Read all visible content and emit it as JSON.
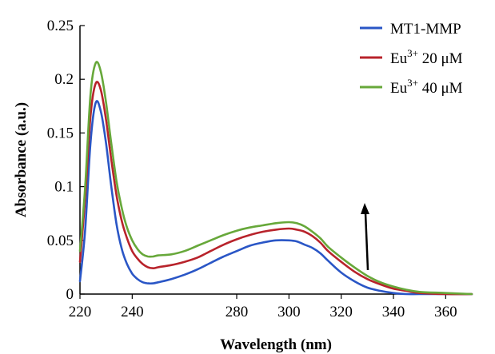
{
  "chart_data": {
    "type": "line",
    "xlabel": "Wavelength (nm)",
    "ylabel": "Absorbance (a.u.)",
    "xlim": [
      220,
      370
    ],
    "ylim": [
      0,
      0.25
    ],
    "x_ticks": [
      "220",
      "240",
      "280",
      "300",
      "320",
      "340",
      "360"
    ],
    "y_ticks": [
      "0",
      "0.05",
      "0.1",
      "0.15",
      "0.2",
      "0.25"
    ],
    "legend_position": "top-right",
    "annotation": "upward arrow near 335 nm indicating increasing absorbance",
    "series": [
      {
        "name": "MT1-MMP",
        "legend_main": "MT1-MMP",
        "legend_sup": "",
        "legend_tail": "",
        "color": "#2a56c6",
        "x": [
          220,
          222,
          224,
          226,
          228,
          230,
          232,
          234,
          236,
          238,
          240,
          242,
          244,
          246,
          248,
          250,
          255,
          260,
          265,
          270,
          275,
          280,
          285,
          290,
          295,
          300,
          303,
          306,
          309,
          312,
          315,
          320,
          325,
          330,
          335,
          340,
          345,
          350,
          360,
          370
        ],
        "y": [
          0.012,
          0.06,
          0.14,
          0.178,
          0.17,
          0.14,
          0.1,
          0.065,
          0.042,
          0.028,
          0.019,
          0.014,
          0.011,
          0.01,
          0.01,
          0.011,
          0.014,
          0.018,
          0.023,
          0.029,
          0.035,
          0.04,
          0.045,
          0.048,
          0.05,
          0.05,
          0.049,
          0.046,
          0.043,
          0.038,
          0.031,
          0.02,
          0.012,
          0.006,
          0.003,
          0.001,
          0.0,
          0.0,
          0.0,
          0.0
        ]
      },
      {
        "name": "Eu3+ 20 μM",
        "legend_main": "Eu",
        "legend_sup": "3+",
        "legend_tail": " 20 μM",
        "color": "#b8232b",
        "x": [
          220,
          222,
          224,
          226,
          228,
          230,
          232,
          234,
          236,
          238,
          240,
          242,
          244,
          246,
          248,
          250,
          255,
          260,
          265,
          270,
          275,
          280,
          285,
          290,
          295,
          300,
          303,
          306,
          309,
          312,
          315,
          320,
          325,
          330,
          335,
          340,
          345,
          350,
          360,
          370
        ],
        "y": [
          0.03,
          0.09,
          0.165,
          0.196,
          0.19,
          0.162,
          0.125,
          0.092,
          0.068,
          0.052,
          0.04,
          0.033,
          0.028,
          0.025,
          0.024,
          0.025,
          0.027,
          0.03,
          0.034,
          0.04,
          0.046,
          0.051,
          0.055,
          0.058,
          0.06,
          0.061,
          0.06,
          0.058,
          0.054,
          0.048,
          0.04,
          0.03,
          0.021,
          0.014,
          0.009,
          0.005,
          0.003,
          0.001,
          0.0,
          0.0
        ]
      },
      {
        "name": "Eu3+ 40 μM",
        "legend_main": "Eu",
        "legend_sup": "3+",
        "legend_tail": " 40 μM",
        "color": "#67a83a",
        "x": [
          220,
          222,
          224,
          226,
          228,
          230,
          232,
          234,
          236,
          238,
          240,
          242,
          244,
          246,
          248,
          250,
          255,
          260,
          265,
          270,
          275,
          280,
          285,
          290,
          295,
          300,
          303,
          306,
          309,
          312,
          315,
          320,
          325,
          330,
          335,
          340,
          345,
          350,
          360,
          370
        ],
        "y": [
          0.04,
          0.1,
          0.185,
          0.215,
          0.207,
          0.178,
          0.14,
          0.105,
          0.08,
          0.062,
          0.05,
          0.042,
          0.037,
          0.035,
          0.035,
          0.036,
          0.037,
          0.04,
          0.045,
          0.05,
          0.055,
          0.059,
          0.062,
          0.064,
          0.066,
          0.067,
          0.066,
          0.063,
          0.058,
          0.052,
          0.044,
          0.034,
          0.025,
          0.017,
          0.011,
          0.007,
          0.004,
          0.002,
          0.001,
          0.0
        ]
      }
    ]
  }
}
